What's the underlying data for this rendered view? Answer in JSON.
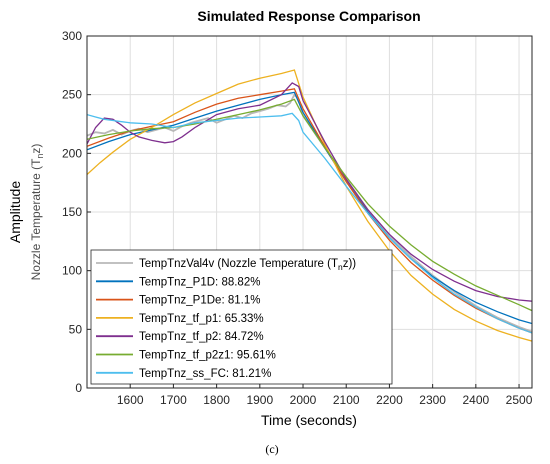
{
  "chart_data": {
    "type": "line",
    "title": "Simulated Response Comparison",
    "xlabel": "Time (seconds)",
    "ylabel": "Amplitude",
    "ylabel_sub": "Nozzle Temperature (T_n z)",
    "caption": "(c)",
    "xlim": [
      1500,
      2530
    ],
    "ylim": [
      0,
      300
    ],
    "xticks": [
      1600,
      1700,
      1800,
      1900,
      2000,
      2100,
      2200,
      2300,
      2400,
      2500
    ],
    "yticks": [
      0,
      50,
      100,
      150,
      200,
      250,
      300
    ],
    "grid": true,
    "legend_position": "bottom-left",
    "series": [
      {
        "name": "TempTnzVal4v (Nozzle Temperature (T_n z))",
        "color": "#b8b8b8",
        "x": [
          1500,
          1520,
          1540,
          1560,
          1580,
          1600,
          1620,
          1640,
          1660,
          1680,
          1700,
          1720,
          1740,
          1760,
          1780,
          1800,
          1820,
          1840,
          1860,
          1880,
          1900,
          1920,
          1940,
          1960,
          1970,
          1980,
          1990,
          2000,
          2050,
          2100,
          2150,
          2200,
          2250,
          2300,
          2350,
          2400,
          2450,
          2500,
          2530
        ],
        "y": [
          215,
          218,
          217,
          220,
          216,
          219,
          221,
          218,
          220,
          222,
          219,
          223,
          226,
          228,
          230,
          226,
          229,
          232,
          230,
          234,
          236,
          238,
          241,
          240,
          243,
          250,
          246,
          232,
          205,
          178,
          152,
          130,
          112,
          96,
          82,
          70,
          60,
          52,
          48
        ]
      },
      {
        "name": "TempTnz_P1D: 88.82%",
        "color": "#0072bd",
        "x": [
          1500,
          1550,
          1600,
          1650,
          1700,
          1750,
          1800,
          1850,
          1900,
          1950,
          1980,
          2000,
          2050,
          2100,
          2150,
          2200,
          2250,
          2300,
          2350,
          2400,
          2450,
          2500,
          2530
        ],
        "y": [
          203,
          210,
          216,
          220,
          224,
          230,
          236,
          241,
          246,
          250,
          252,
          235,
          205,
          176,
          150,
          128,
          110,
          95,
          83,
          73,
          65,
          58,
          55
        ]
      },
      {
        "name": "TempTnz_P1De: 81.1%",
        "color": "#d95319",
        "x": [
          1500,
          1550,
          1600,
          1650,
          1700,
          1750,
          1800,
          1850,
          1900,
          1950,
          1980,
          2000,
          2050,
          2100,
          2150,
          2200,
          2250,
          2300,
          2350,
          2400,
          2450,
          2500,
          2530
        ],
        "y": [
          206,
          213,
          219,
          223,
          227,
          235,
          242,
          247,
          250,
          253,
          255,
          238,
          206,
          176,
          149,
          126,
          107,
          92,
          79,
          68,
          59,
          51,
          47
        ]
      },
      {
        "name": "TempTnz_tf_p1: 65.33%",
        "color": "#edb120",
        "x": [
          1500,
          1530,
          1560,
          1600,
          1650,
          1700,
          1750,
          1800,
          1850,
          1900,
          1950,
          1980,
          2000,
          2050,
          2100,
          2150,
          2200,
          2250,
          2300,
          2350,
          2400,
          2450,
          2500,
          2530
        ],
        "y": [
          182,
          192,
          201,
          212,
          222,
          233,
          243,
          251,
          259,
          264,
          268,
          271,
          248,
          208,
          172,
          142,
          117,
          96,
          80,
          67,
          57,
          49,
          43,
          40
        ]
      },
      {
        "name": "TempTnz_tf_p2: 84.72%",
        "color": "#7e2f8e",
        "x": [
          1500,
          1520,
          1540,
          1560,
          1580,
          1600,
          1620,
          1650,
          1680,
          1700,
          1720,
          1750,
          1800,
          1850,
          1900,
          1950,
          1975,
          1990,
          2000,
          2050,
          2100,
          2150,
          2200,
          2250,
          2300,
          2350,
          2400,
          2450,
          2500,
          2530
        ],
        "y": [
          208,
          222,
          230,
          229,
          224,
          218,
          214,
          211,
          209,
          210,
          214,
          222,
          233,
          238,
          241,
          250,
          260,
          257,
          245,
          210,
          178,
          152,
          131,
          114,
          101,
          91,
          83,
          78,
          75,
          74
        ]
      },
      {
        "name": "TempTnz_tf_p2z1: 95.61%",
        "color": "#77ac30",
        "x": [
          1500,
          1550,
          1600,
          1650,
          1700,
          1750,
          1800,
          1850,
          1900,
          1950,
          1980,
          2000,
          2050,
          2100,
          2150,
          2200,
          2250,
          2300,
          2350,
          2400,
          2450,
          2500,
          2530
        ],
        "y": [
          212,
          216,
          219,
          221,
          222,
          225,
          229,
          233,
          237,
          242,
          246,
          232,
          205,
          180,
          157,
          138,
          122,
          108,
          97,
          87,
          79,
          71,
          66
        ]
      },
      {
        "name": "TempTnz_ss_FC: 81.21%",
        "color": "#4dbeee",
        "x": [
          1500,
          1520,
          1540,
          1560,
          1580,
          1600,
          1650,
          1700,
          1750,
          1800,
          1850,
          1900,
          1950,
          1975,
          1990,
          2000,
          2050,
          2100,
          2150,
          2200,
          2250,
          2300,
          2350,
          2400,
          2450,
          2500,
          2530
        ],
        "y": [
          233,
          231,
          229,
          228,
          227,
          226,
          225,
          222,
          226,
          228,
          230,
          231,
          232,
          234,
          228,
          218,
          196,
          172,
          149,
          128,
          110,
          94,
          80,
          69,
          59,
          51,
          47
        ]
      }
    ]
  }
}
